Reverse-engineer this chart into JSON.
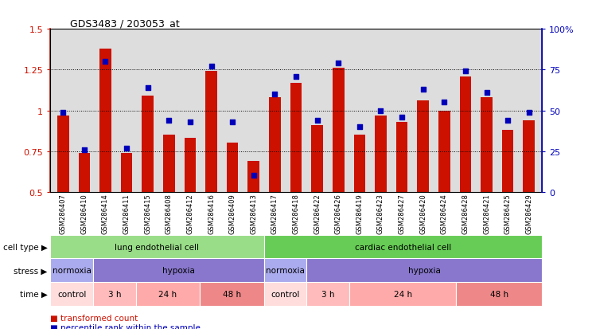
{
  "title": "GDS3483 / 203053_at",
  "samples": [
    "GSM286407",
    "GSM286410",
    "GSM286414",
    "GSM286411",
    "GSM286415",
    "GSM286408",
    "GSM286412",
    "GSM286416",
    "GSM286409",
    "GSM286413",
    "GSM286417",
    "GSM286418",
    "GSM286422",
    "GSM286426",
    "GSM286419",
    "GSM286423",
    "GSM286427",
    "GSM286420",
    "GSM286424",
    "GSM286428",
    "GSM286421",
    "GSM286425",
    "GSM286429"
  ],
  "red_values": [
    0.97,
    0.74,
    1.38,
    0.74,
    1.09,
    0.85,
    0.83,
    1.24,
    0.8,
    0.69,
    1.08,
    1.17,
    0.91,
    1.26,
    0.85,
    0.97,
    0.93,
    1.06,
    1.0,
    1.21,
    1.08,
    0.88,
    0.94
  ],
  "blue_pct": [
    49,
    26,
    80,
    27,
    64,
    44,
    43,
    77,
    43,
    10,
    60,
    71,
    44,
    79,
    40,
    50,
    46,
    63,
    55,
    74,
    61,
    44,
    49
  ],
  "ylim_red": [
    0.5,
    1.5
  ],
  "yticks_red": [
    0.5,
    0.75,
    1.0,
    1.25,
    1.5
  ],
  "ytick_labels_red": [
    "0.5",
    "0.75",
    "1",
    "1.25",
    "1.5"
  ],
  "ylim_blue_pct": [
    0,
    100
  ],
  "yticks_blue": [
    0,
    25,
    50,
    75,
    100
  ],
  "ytick_labels_blue": [
    "0",
    "25",
    "50",
    "75",
    "100%"
  ],
  "cell_type_labels": [
    {
      "label": "lung endothelial cell",
      "start": 0,
      "end": 10,
      "color": "#99dd88"
    },
    {
      "label": "cardiac endothelial cell",
      "start": 10,
      "end": 23,
      "color": "#66cc55"
    }
  ],
  "stress_labels": [
    {
      "label": "normoxia",
      "start": 0,
      "end": 2,
      "color": "#aaaaee"
    },
    {
      "label": "hypoxia",
      "start": 2,
      "end": 10,
      "color": "#8877cc"
    },
    {
      "label": "normoxia",
      "start": 10,
      "end": 12,
      "color": "#aaaaee"
    },
    {
      "label": "hypoxia",
      "start": 12,
      "end": 23,
      "color": "#8877cc"
    }
  ],
  "time_labels": [
    {
      "label": "control",
      "start": 0,
      "end": 2,
      "color": "#ffdddd"
    },
    {
      "label": "3 h",
      "start": 2,
      "end": 4,
      "color": "#ffbbbb"
    },
    {
      "label": "24 h",
      "start": 4,
      "end": 7,
      "color": "#ffaaaa"
    },
    {
      "label": "48 h",
      "start": 7,
      "end": 10,
      "color": "#ee8888"
    },
    {
      "label": "control",
      "start": 10,
      "end": 12,
      "color": "#ffdddd"
    },
    {
      "label": "3 h",
      "start": 12,
      "end": 14,
      "color": "#ffbbbb"
    },
    {
      "label": "24 h",
      "start": 14,
      "end": 19,
      "color": "#ffaaaa"
    },
    {
      "label": "48 h",
      "start": 19,
      "end": 23,
      "color": "#ee8888"
    }
  ],
  "red_color": "#cc1100",
  "blue_color": "#0000bb",
  "bar_width": 0.55,
  "bg_color": "#dddddd"
}
